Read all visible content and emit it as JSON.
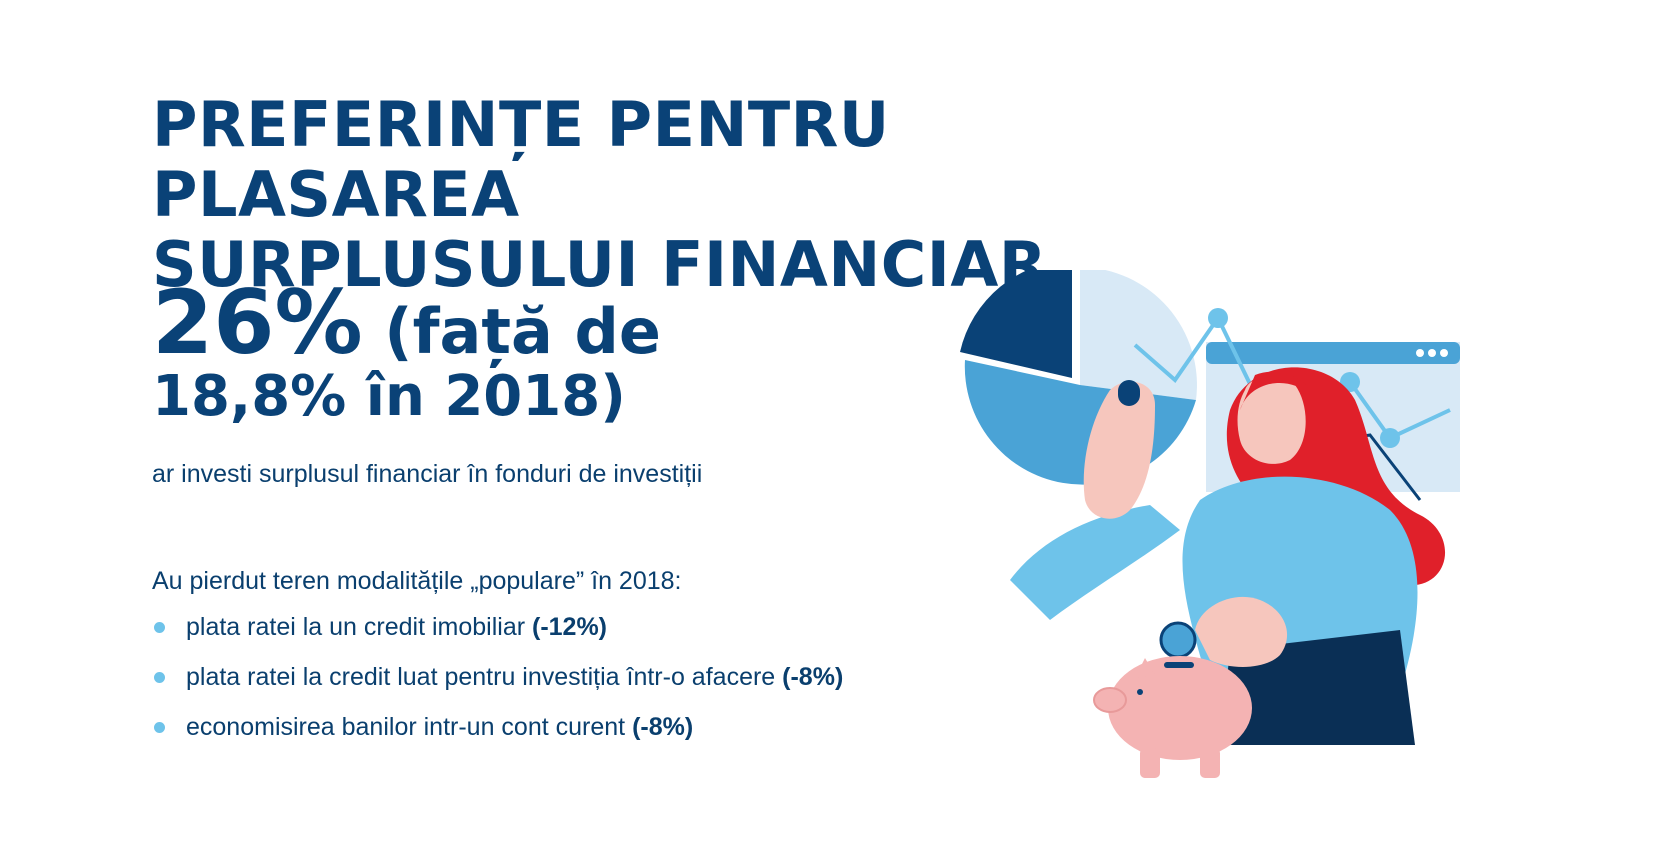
{
  "title": {
    "line1": "PREFERINȚE PENTRU PLASAREA",
    "line2": "SURPLUSULUI FINANCIAR"
  },
  "stat": {
    "value": "26%",
    "compare_line1": "(față de",
    "compare_line2": "18,8% în 2018)",
    "description": "ar investi surplusul financiar în fonduri de investiții"
  },
  "lost": {
    "heading": "Au pierdut teren modalitățile „populare” în 2018:",
    "items": [
      {
        "text": "plata ratei la un credit imobiliar ",
        "change": "(-12%)"
      },
      {
        "text": "plata ratei la credit luat pentru investiția într-o afacere ",
        "change": "(-8%)"
      },
      {
        "text": "economisirea banilor intr-un cont curent ",
        "change": "(-8%)"
      }
    ]
  },
  "colors": {
    "navy": "#0a4277",
    "light_blue": "#6ec3ea",
    "mid_blue": "#4aa3d6",
    "pale_blue": "#d8e9f6",
    "hair_red": "#e0202a",
    "skin": "#f6c6bd",
    "piggy_pink": "#f4b3b3"
  },
  "icons": [
    "pie-chart-icon",
    "browser-window-icon",
    "line-chart-icon",
    "coin-icon",
    "piggy-bank-icon",
    "woman-illustration"
  ]
}
